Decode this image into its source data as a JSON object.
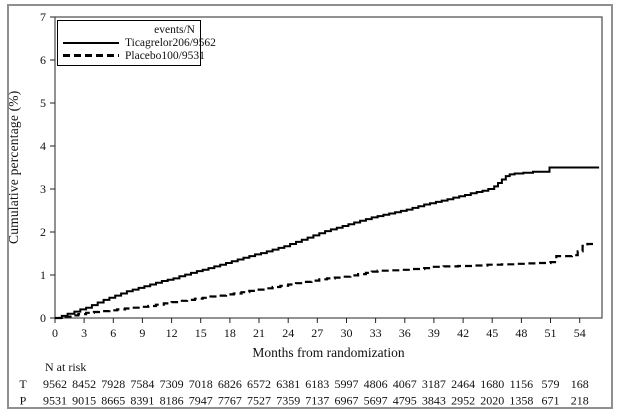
{
  "figure": {
    "y_axis_title": "Cumulative percentage (%)",
    "x_axis_title": "Months from randomization",
    "legend": {
      "header": "events/N",
      "entries": [
        {
          "label": "Ticagrelor",
          "value": "206/9562",
          "style": "solid"
        },
        {
          "label": "Placebo",
          "value": "100/9531",
          "style": "dashed"
        }
      ]
    },
    "risk_table": {
      "title": "N at risk",
      "rows": [
        {
          "label": "T",
          "counts": [
            9562,
            8452,
            7928,
            7584,
            7309,
            7018,
            6826,
            6572,
            6381,
            6183,
            5997,
            4806,
            4067,
            3187,
            2464,
            1680,
            1156,
            579,
            168
          ]
        },
        {
          "label": "P",
          "counts": [
            9531,
            9015,
            8665,
            8391,
            8186,
            7947,
            7767,
            7527,
            7359,
            7137,
            6967,
            5697,
            4795,
            3843,
            2952,
            2020,
            1358,
            671,
            218
          ]
        }
      ]
    }
  },
  "colors": {
    "background": "#ffffff",
    "outer_border": "#8f8f8f",
    "axis": "#4a4a4a",
    "line": "#000000",
    "text": "#111111"
  },
  "chart_data": {
    "type": "line",
    "step": true,
    "title": "",
    "xlabel": "Months from randomization",
    "ylabel": "Cumulative percentage (%)",
    "xlim": [
      0,
      56.3
    ],
    "ylim": [
      0,
      7
    ],
    "x_ticks": [
      0,
      3,
      6,
      9,
      12,
      15,
      18,
      21,
      24,
      27,
      30,
      33,
      36,
      39,
      42,
      45,
      48,
      51,
      54
    ],
    "y_ticks": [
      0,
      1,
      2,
      3,
      4,
      5,
      6,
      7
    ],
    "grid": false,
    "legend_position": "top-left",
    "series": [
      {
        "name": "Ticagrelor",
        "events_n": "206/9562",
        "line": "solid",
        "color": "#000000",
        "points": [
          [
            0,
            0
          ],
          [
            0.7,
            0.05
          ],
          [
            1.3,
            0.1
          ],
          [
            2,
            0.15
          ],
          [
            2.6,
            0.2
          ],
          [
            3.2,
            0.24
          ],
          [
            3.8,
            0.3
          ],
          [
            4.4,
            0.36
          ],
          [
            5,
            0.42
          ],
          [
            5.6,
            0.47
          ],
          [
            6.2,
            0.52
          ],
          [
            6.8,
            0.57
          ],
          [
            7.4,
            0.62
          ],
          [
            8,
            0.66
          ],
          [
            8.6,
            0.7
          ],
          [
            9.2,
            0.74
          ],
          [
            9.8,
            0.78
          ],
          [
            10.4,
            0.82
          ],
          [
            11,
            0.86
          ],
          [
            11.6,
            0.89
          ],
          [
            12.2,
            0.92
          ],
          [
            12.8,
            0.97
          ],
          [
            13.4,
            1.01
          ],
          [
            14,
            1.05
          ],
          [
            14.6,
            1.09
          ],
          [
            15.2,
            1.12
          ],
          [
            15.8,
            1.16
          ],
          [
            16.4,
            1.2
          ],
          [
            17,
            1.24
          ],
          [
            17.6,
            1.28
          ],
          [
            18.2,
            1.32
          ],
          [
            18.8,
            1.36
          ],
          [
            19.4,
            1.4
          ],
          [
            20,
            1.44
          ],
          [
            20.6,
            1.48
          ],
          [
            21.2,
            1.51
          ],
          [
            21.8,
            1.55
          ],
          [
            22.4,
            1.59
          ],
          [
            23,
            1.63
          ],
          [
            23.6,
            1.67
          ],
          [
            24.2,
            1.72
          ],
          [
            24.8,
            1.77
          ],
          [
            25.4,
            1.82
          ],
          [
            26,
            1.87
          ],
          [
            26.6,
            1.92
          ],
          [
            27.2,
            1.97
          ],
          [
            27.8,
            2.02
          ],
          [
            28.4,
            2.06
          ],
          [
            29,
            2.1
          ],
          [
            29.6,
            2.14
          ],
          [
            30.2,
            2.18
          ],
          [
            30.8,
            2.22
          ],
          [
            31.4,
            2.26
          ],
          [
            32,
            2.3
          ],
          [
            32.6,
            2.34
          ],
          [
            33.2,
            2.37
          ],
          [
            33.8,
            2.4
          ],
          [
            34.4,
            2.43
          ],
          [
            35,
            2.46
          ],
          [
            35.6,
            2.49
          ],
          [
            36.2,
            2.52
          ],
          [
            36.8,
            2.56
          ],
          [
            37.4,
            2.6
          ],
          [
            38,
            2.64
          ],
          [
            38.6,
            2.67
          ],
          [
            39.2,
            2.7
          ],
          [
            39.8,
            2.73
          ],
          [
            40.4,
            2.76
          ],
          [
            41,
            2.8
          ],
          [
            41.6,
            2.83
          ],
          [
            42.2,
            2.86
          ],
          [
            42.8,
            2.9
          ],
          [
            43.4,
            2.93
          ],
          [
            44,
            2.96
          ],
          [
            44.6,
            3.0
          ],
          [
            45.2,
            3.06
          ],
          [
            45.6,
            3.14
          ],
          [
            46,
            3.22
          ],
          [
            46.4,
            3.3
          ],
          [
            46.8,
            3.34
          ],
          [
            47.3,
            3.36
          ],
          [
            48.2,
            3.38
          ],
          [
            49.2,
            3.4
          ],
          [
            50.9,
            3.5
          ],
          [
            56,
            3.5
          ]
        ]
      },
      {
        "name": "Placebo",
        "events_n": "100/9531",
        "line": "dashed",
        "color": "#000000",
        "points": [
          [
            0,
            0
          ],
          [
            0.8,
            0.03
          ],
          [
            1.6,
            0.06
          ],
          [
            2.4,
            0.09
          ],
          [
            3.2,
            0.12
          ],
          [
            4,
            0.14
          ],
          [
            4.8,
            0.16
          ],
          [
            5.6,
            0.18
          ],
          [
            6.4,
            0.2
          ],
          [
            7.2,
            0.22
          ],
          [
            8,
            0.24
          ],
          [
            8.8,
            0.26
          ],
          [
            9.6,
            0.28
          ],
          [
            10.4,
            0.31
          ],
          [
            11.2,
            0.34
          ],
          [
            12,
            0.37
          ],
          [
            12.8,
            0.4
          ],
          [
            13.6,
            0.42
          ],
          [
            14.4,
            0.45
          ],
          [
            15.2,
            0.47
          ],
          [
            16,
            0.5
          ],
          [
            16.8,
            0.52
          ],
          [
            17.6,
            0.55
          ],
          [
            18.4,
            0.57
          ],
          [
            19.2,
            0.6
          ],
          [
            20,
            0.63
          ],
          [
            20.8,
            0.66
          ],
          [
            21.6,
            0.69
          ],
          [
            22.4,
            0.72
          ],
          [
            23.2,
            0.75
          ],
          [
            24,
            0.78
          ],
          [
            24.8,
            0.81
          ],
          [
            25.6,
            0.84
          ],
          [
            26.4,
            0.87
          ],
          [
            27.2,
            0.9
          ],
          [
            28,
            0.92
          ],
          [
            28.8,
            0.94
          ],
          [
            29.6,
            0.96
          ],
          [
            30.4,
            0.99
          ],
          [
            31.2,
            1.02
          ],
          [
            32,
            1.05
          ],
          [
            32.6,
            1.08
          ],
          [
            33.2,
            1.1
          ],
          [
            34.4,
            1.11
          ],
          [
            35.6,
            1.12
          ],
          [
            36.8,
            1.14
          ],
          [
            38,
            1.16
          ],
          [
            38.8,
            1.19
          ],
          [
            40,
            1.2
          ],
          [
            41.5,
            1.21
          ],
          [
            43,
            1.22
          ],
          [
            44.5,
            1.24
          ],
          [
            46,
            1.25
          ],
          [
            47.5,
            1.26
          ],
          [
            48.5,
            1.27
          ],
          [
            49.5,
            1.28
          ],
          [
            51,
            1.3
          ],
          [
            51.6,
            1.44
          ],
          [
            53.2,
            1.46
          ],
          [
            53.8,
            1.55
          ],
          [
            54.3,
            1.68
          ],
          [
            54.8,
            1.72
          ],
          [
            55.6,
            1.75
          ]
        ]
      }
    ]
  }
}
